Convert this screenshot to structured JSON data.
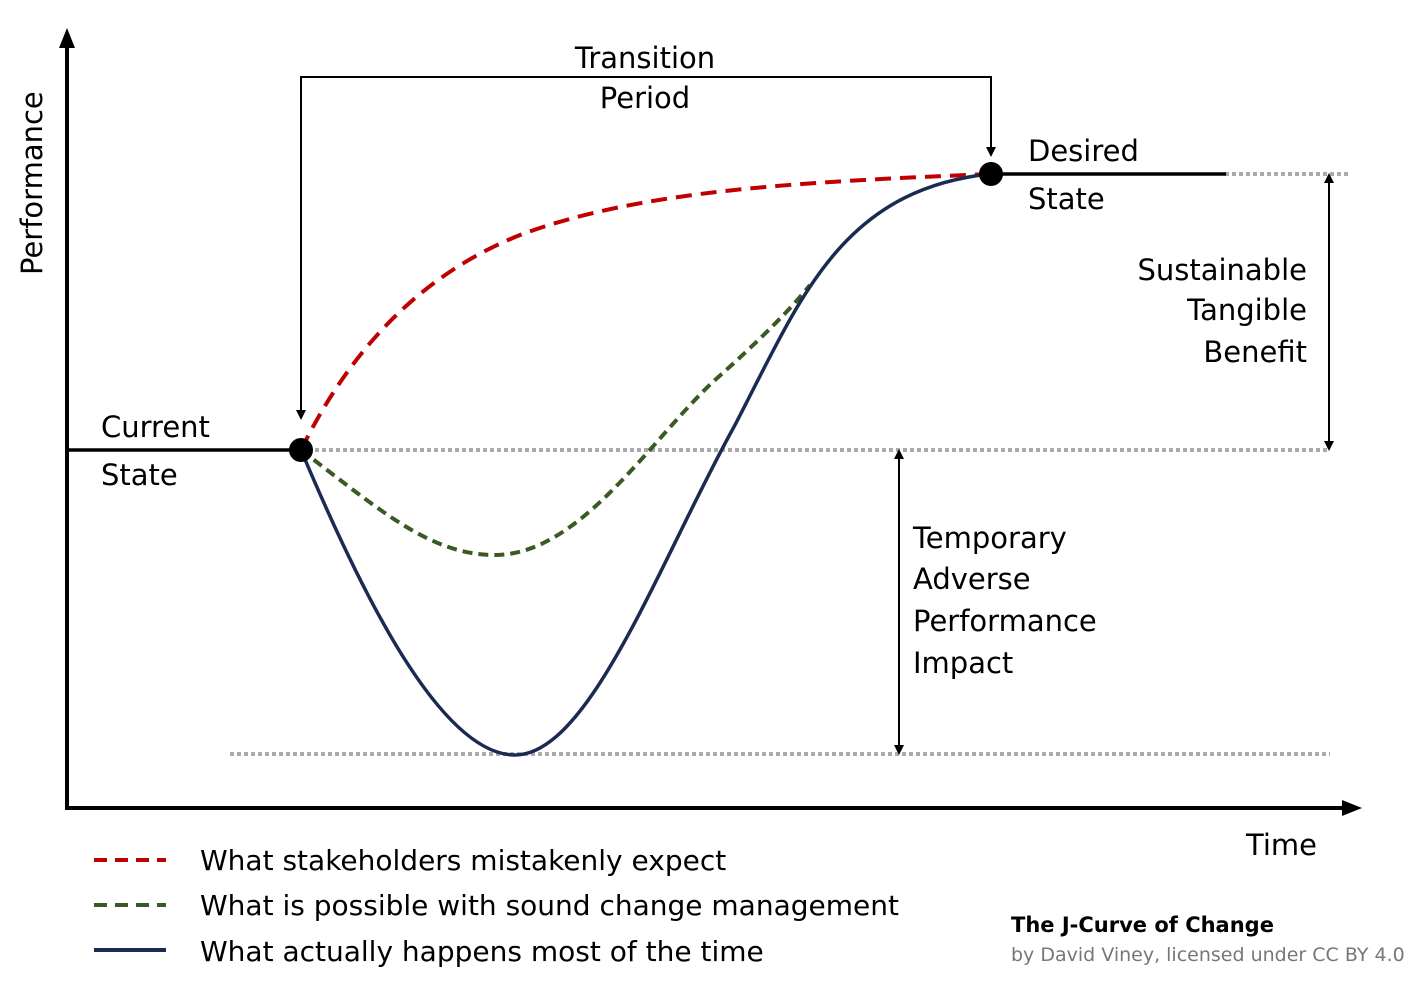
{
  "axes": {
    "y_label": "Performance",
    "x_label": "Time"
  },
  "labels": {
    "transition": [
      "Transition",
      "Period"
    ],
    "current_state": [
      "Current",
      "State"
    ],
    "desired_state": [
      "Desired",
      "State"
    ],
    "benefit": [
      "Sustainable",
      "Tangible",
      "Benefit"
    ],
    "impact": [
      "Temporary",
      "Adverse",
      "Performance",
      "Impact"
    ]
  },
  "legend": [
    {
      "label": "What stakeholders mistakenly expect",
      "color": "#c00000",
      "style": "dashed"
    },
    {
      "label": "What is possible with sound change management",
      "color": "#3a5a23",
      "style": "dashed"
    },
    {
      "label": "What actually happens most of the time",
      "color": "#1b2a52",
      "style": "solid"
    }
  ],
  "credit": {
    "title": "The J-Curve of Change",
    "subtitle": "by David Viney, licensed under CC BY 4.0"
  }
}
